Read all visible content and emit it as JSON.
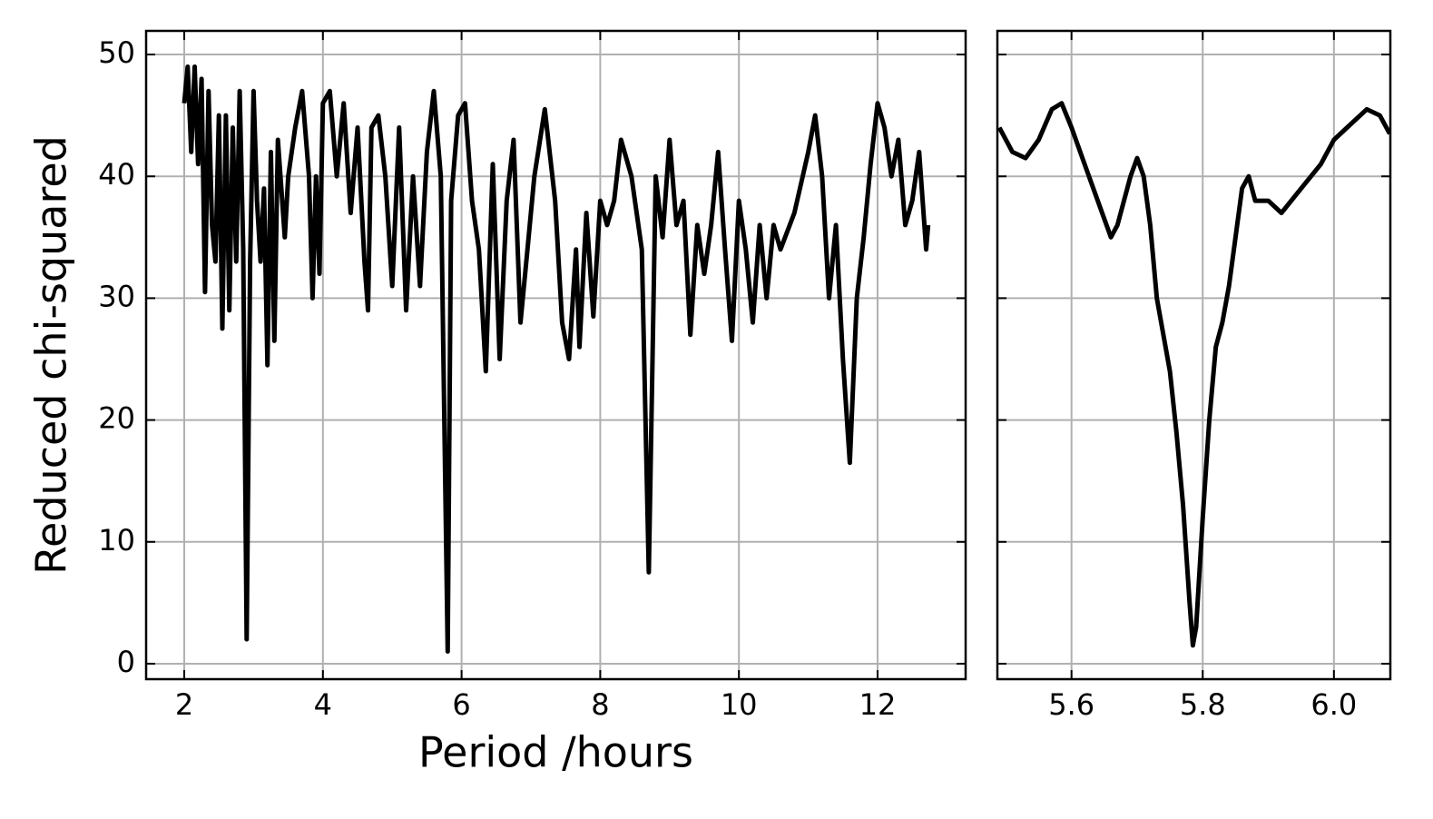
{
  "chart_data": [
    {
      "type": "line",
      "xlabel": "Period /hours",
      "ylabel": "Reduced chi-squared",
      "color": "#000000",
      "grid": true,
      "xlim": [
        1.45,
        13.27
      ],
      "ylim": [
        -1.27,
        51.94
      ],
      "xticks": [
        2,
        4,
        6,
        8,
        10,
        12
      ],
      "yticks": [
        0,
        10,
        20,
        30,
        40,
        50
      ],
      "show_yticklabels": true,
      "x": [
        2.0,
        2.05,
        2.1,
        2.15,
        2.2,
        2.25,
        2.3,
        2.35,
        2.4,
        2.45,
        2.5,
        2.55,
        2.6,
        2.65,
        2.7,
        2.75,
        2.8,
        2.85,
        2.9,
        2.95,
        3.0,
        3.05,
        3.1,
        3.15,
        3.2,
        3.25,
        3.3,
        3.35,
        3.45,
        3.5,
        3.6,
        3.7,
        3.8,
        3.85,
        3.9,
        3.95,
        4.0,
        4.1,
        4.2,
        4.3,
        4.4,
        4.5,
        4.6,
        4.65,
        4.7,
        4.8,
        4.9,
        5.0,
        5.1,
        5.2,
        5.3,
        5.4,
        5.5,
        5.6,
        5.7,
        5.8,
        5.85,
        5.95,
        6.05,
        6.15,
        6.25,
        6.35,
        6.45,
        6.55,
        6.65,
        6.75,
        6.85,
        6.95,
        7.05,
        7.2,
        7.35,
        7.45,
        7.55,
        7.65,
        7.7,
        7.8,
        7.9,
        8.0,
        8.1,
        8.2,
        8.3,
        8.45,
        8.6,
        8.7,
        8.8,
        8.9,
        9.0,
        9.1,
        9.2,
        9.3,
        9.4,
        9.5,
        9.6,
        9.7,
        9.8,
        9.9,
        10.0,
        10.1,
        10.2,
        10.3,
        10.4,
        10.5,
        10.6,
        10.8,
        11.0,
        11.1,
        11.2,
        11.3,
        11.4,
        11.5,
        11.6,
        11.7,
        11.8,
        11.9,
        12.0,
        12.1,
        12.2,
        12.3,
        12.4,
        12.5,
        12.6,
        12.7,
        12.73
      ],
      "values": [
        46,
        49,
        42,
        49,
        41,
        48,
        30.5,
        47,
        36,
        33,
        45,
        27.5,
        45,
        29,
        44,
        33,
        47,
        34,
        2,
        33,
        47,
        38,
        33,
        39,
        24.5,
        42,
        26.5,
        43,
        35,
        40,
        44,
        47,
        40,
        30,
        40,
        32,
        46,
        47,
        40,
        46,
        37,
        44,
        33,
        29,
        44,
        45,
        40,
        31,
        44,
        29,
        40,
        31,
        42,
        47,
        40,
        1,
        38,
        45,
        46,
        38,
        34,
        24,
        41,
        25,
        38,
        43,
        28,
        34,
        40,
        45.5,
        38,
        28,
        25,
        34,
        26,
        37,
        28.5,
        38,
        36,
        38,
        43,
        40,
        34,
        7.5,
        40,
        35,
        43,
        36,
        38,
        27,
        36,
        32,
        36,
        42,
        34,
        26.5,
        38,
        34,
        28,
        36,
        30,
        36,
        34,
        37,
        42,
        45,
        40,
        30,
        36,
        25,
        16.5,
        30,
        35,
        41,
        46,
        44,
        40,
        43,
        36,
        38,
        42,
        34,
        36
      ]
    },
    {
      "type": "line",
      "color": "#000000",
      "grid": true,
      "xlim": [
        5.487,
        6.086
      ],
      "ylim": [
        -1.27,
        51.94
      ],
      "xticks": [
        5.6,
        5.8,
        {
          "value": 6,
          "label": "6.0"
        }
      ],
      "yticks": [
        0,
        10,
        20,
        30,
        40,
        50
      ],
      "show_yticklabels": false,
      "x": [
        5.49,
        5.51,
        5.53,
        5.55,
        5.57,
        5.585,
        5.6,
        5.62,
        5.64,
        5.66,
        5.67,
        5.69,
        5.7,
        5.71,
        5.72,
        5.73,
        5.74,
        5.75,
        5.76,
        5.77,
        5.78,
        5.785,
        5.79,
        5.8,
        5.81,
        5.82,
        5.83,
        5.84,
        5.85,
        5.86,
        5.87,
        5.88,
        5.9,
        5.92,
        5.95,
        5.98,
        6.0,
        6.02,
        6.05,
        6.07,
        6.085
      ],
      "values": [
        44,
        42,
        41.5,
        43,
        45.5,
        46,
        44,
        41,
        38,
        35,
        36,
        40,
        41.5,
        40,
        36,
        30,
        27,
        24,
        19,
        13,
        5,
        1.5,
        3,
        12,
        20,
        26,
        28,
        31,
        35,
        39,
        40,
        38,
        38,
        37,
        39,
        41,
        43,
        44,
        45.5,
        45,
        43.5
      ]
    }
  ]
}
